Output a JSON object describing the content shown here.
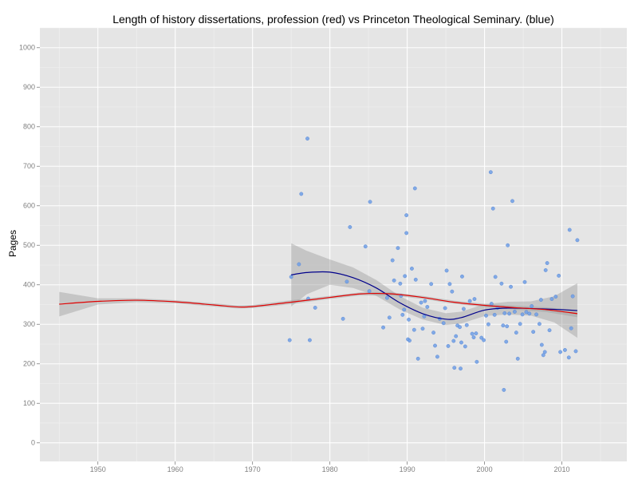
{
  "chart_data": {
    "type": "scatter",
    "title": "Length of history dissertations, profession (red) vs Princeton Theological Seminary. (blue)",
    "xlabel": "",
    "ylabel": "Pages",
    "xlim": [
      1942.5,
      2018.4
    ],
    "ylim": [
      -47,
      1050
    ],
    "x_ticks": [
      1950,
      1960,
      1970,
      1980,
      1990,
      2000,
      2010
    ],
    "y_ticks": [
      0,
      100,
      200,
      300,
      400,
      500,
      600,
      700,
      800,
      900,
      1000
    ],
    "grid": true,
    "background": "#e5e5e5",
    "legend": "none",
    "colors": {
      "points": "#6e9fe6",
      "seminary_smooth": "#00008b",
      "profession_smooth": "#e00000",
      "confidence_band": "#999999"
    },
    "series": [
      {
        "name": "Princeton Theological Seminary",
        "kind": "points",
        "color": "#6e9fe6",
        "points": [
          [
            1974.8,
            260
          ],
          [
            1975.0,
            420
          ],
          [
            1976.0,
            452
          ],
          [
            1976.3,
            630
          ],
          [
            1977.1,
            770
          ],
          [
            1977.2,
            365
          ],
          [
            1977.4,
            260
          ],
          [
            1978.1,
            342
          ],
          [
            1981.7,
            314
          ],
          [
            1982.2,
            408
          ],
          [
            1982.6,
            546
          ],
          [
            1984.6,
            497
          ],
          [
            1985.1,
            384
          ],
          [
            1985.2,
            610
          ],
          [
            1986.9,
            292
          ],
          [
            1987.4,
            367
          ],
          [
            1987.7,
            317
          ],
          [
            1988.1,
            462
          ],
          [
            1988.3,
            411
          ],
          [
            1988.8,
            493
          ],
          [
            1989.1,
            403
          ],
          [
            1989.2,
            372
          ],
          [
            1989.4,
            324
          ],
          [
            1989.6,
            337
          ],
          [
            1989.7,
            422
          ],
          [
            1989.9,
            531
          ],
          [
            1989.9,
            576
          ],
          [
            1990.1,
            262
          ],
          [
            1990.2,
            312
          ],
          [
            1990.3,
            259
          ],
          [
            1990.6,
            441
          ],
          [
            1990.9,
            286
          ],
          [
            1991.0,
            644
          ],
          [
            1991.1,
            413
          ],
          [
            1991.4,
            213
          ],
          [
            1991.8,
            355
          ],
          [
            1992.0,
            289
          ],
          [
            1992.2,
            320
          ],
          [
            1992.3,
            359
          ],
          [
            1992.6,
            344
          ],
          [
            1993.1,
            402
          ],
          [
            1993.4,
            279
          ],
          [
            1993.6,
            246
          ],
          [
            1993.9,
            218
          ],
          [
            1994.2,
            314
          ],
          [
            1994.7,
            303
          ],
          [
            1994.9,
            341
          ],
          [
            1995.1,
            436
          ],
          [
            1995.3,
            245
          ],
          [
            1995.5,
            402
          ],
          [
            1995.8,
            383
          ],
          [
            1996.0,
            258
          ],
          [
            1996.1,
            190
          ],
          [
            1996.3,
            270
          ],
          [
            1996.5,
            297
          ],
          [
            1996.8,
            293
          ],
          [
            1996.9,
            188
          ],
          [
            1997.0,
            254
          ],
          [
            1997.1,
            421
          ],
          [
            1997.3,
            339
          ],
          [
            1997.5,
            244
          ],
          [
            1997.7,
            298
          ],
          [
            1998.1,
            359
          ],
          [
            1998.4,
            276
          ],
          [
            1998.6,
            267
          ],
          [
            1998.7,
            364
          ],
          [
            1998.9,
            277
          ],
          [
            1999.0,
            205
          ],
          [
            1999.6,
            266
          ],
          [
            1999.9,
            260
          ],
          [
            2000.2,
            322
          ],
          [
            2000.5,
            300
          ],
          [
            2000.8,
            685
          ],
          [
            2000.9,
            352
          ],
          [
            2001.1,
            593
          ],
          [
            2001.3,
            324
          ],
          [
            2001.4,
            420
          ],
          [
            2001.7,
            342
          ],
          [
            2002.2,
            403
          ],
          [
            2002.4,
            297
          ],
          [
            2002.5,
            134
          ],
          [
            2002.6,
            328
          ],
          [
            2002.8,
            256
          ],
          [
            2002.9,
            295
          ],
          [
            2003.0,
            500
          ],
          [
            2003.2,
            327
          ],
          [
            2003.4,
            395
          ],
          [
            2003.6,
            612
          ],
          [
            2003.9,
            332
          ],
          [
            2004.1,
            279
          ],
          [
            2004.3,
            213
          ],
          [
            2004.6,
            301
          ],
          [
            2004.9,
            325
          ],
          [
            2005.2,
            407
          ],
          [
            2005.4,
            331
          ],
          [
            2005.8,
            327
          ],
          [
            2006.1,
            346
          ],
          [
            2006.3,
            281
          ],
          [
            2006.7,
            325
          ],
          [
            2007.1,
            301
          ],
          [
            2007.3,
            362
          ],
          [
            2007.4,
            248
          ],
          [
            2007.6,
            222
          ],
          [
            2007.8,
            230
          ],
          [
            2007.9,
            437
          ],
          [
            2008.1,
            455
          ],
          [
            2008.4,
            285
          ],
          [
            2008.7,
            364
          ],
          [
            2009.2,
            370
          ],
          [
            2009.6,
            423
          ],
          [
            2009.8,
            230
          ],
          [
            2010.4,
            235
          ],
          [
            2010.9,
            216
          ],
          [
            2011.0,
            539
          ],
          [
            2011.2,
            290
          ],
          [
            2011.4,
            371
          ],
          [
            2011.8,
            232
          ],
          [
            2012.0,
            513
          ]
        ]
      },
      {
        "name": "Princeton Theological Seminary smooth",
        "kind": "smooth",
        "color": "#00008b",
        "band_color": "#999999",
        "x": [
          1975,
          1977,
          1980,
          1983,
          1986,
          1989,
          1992,
          1995,
          1997,
          2000,
          2003,
          2006,
          2009,
          2012
        ],
        "y": [
          425,
          431,
          432,
          418,
          392,
          355,
          327,
          313,
          317,
          336,
          341,
          340,
          338,
          335
        ],
        "lo": [
          345,
          376,
          400,
          392,
          372,
          338,
          312,
          298,
          302,
          321,
          325,
          322,
          305,
          266
        ],
        "hi": [
          505,
          486,
          464,
          444,
          412,
          372,
          342,
          328,
          332,
          351,
          357,
          358,
          371,
          404
        ]
      },
      {
        "name": "Profession smooth",
        "kind": "smooth",
        "color": "#e00000",
        "band_color": "#999999",
        "x": [
          1945,
          1950,
          1955,
          1960,
          1965,
          1968,
          1970,
          1975,
          1980,
          1984,
          1988,
          1992,
          1996,
          2000,
          2004,
          2008,
          2012
        ],
        "y": [
          351,
          358,
          361,
          357,
          349,
          344,
          345,
          356,
          368,
          377,
          377,
          368,
          356,
          348,
          342,
          337,
          327
        ],
        "lo": [
          320,
          350,
          356,
          353,
          345,
          340,
          341,
          351,
          364,
          373,
          373,
          364,
          352,
          344,
          337,
          331,
          318
        ],
        "hi": [
          382,
          366,
          366,
          361,
          353,
          348,
          349,
          361,
          372,
          381,
          381,
          372,
          360,
          352,
          347,
          343,
          336
        ]
      }
    ]
  }
}
